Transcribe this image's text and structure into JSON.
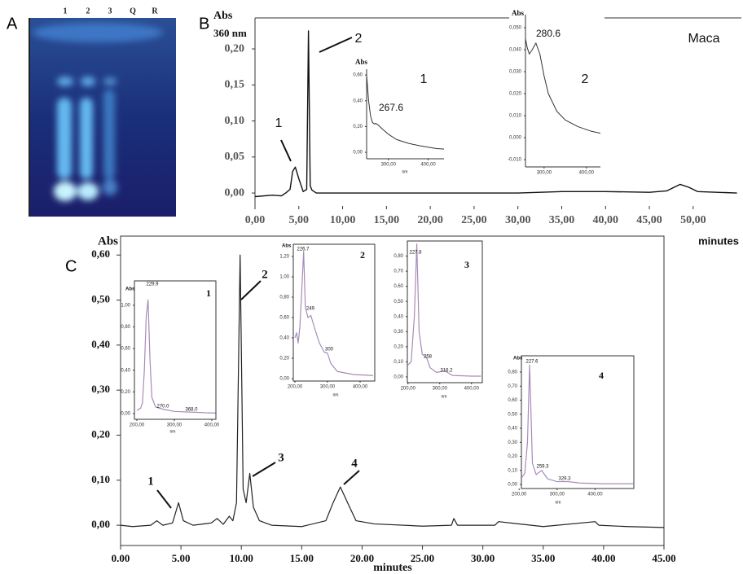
{
  "figure": {
    "panel_labels": [
      "A",
      "B",
      "C"
    ],
    "tlc_lanes": [
      "1",
      "2",
      "3",
      "Q",
      "R"
    ]
  },
  "chart_data": [
    {
      "type": "line",
      "y_label": "Abs",
      "subtitle": "360 nm",
      "x_label": "minutes",
      "color": "#111111",
      "x": [
        0,
        2,
        3,
        3.5,
        4,
        4.3,
        4.6,
        5,
        5.5,
        5.9,
        6.1,
        6.3,
        6.5,
        7,
        10,
        20,
        30,
        35,
        40,
        45,
        47,
        48.5,
        49.5,
        50.5,
        55
      ],
      "values": [
        -0.005,
        -0.003,
        -0.004,
        0,
        0.005,
        0.03,
        0.036,
        0.02,
        0.002,
        0.005,
        0.225,
        0.01,
        0.004,
        0,
        0,
        0,
        0,
        0.002,
        0.002,
        0.001,
        0.003,
        0.012,
        0.008,
        0.002,
        0
      ],
      "xlim": [
        0,
        55.5
      ],
      "ylim": [
        -0.018,
        0.243
      ],
      "xticks": [
        {
          "value": 0,
          "label": "0,00"
        },
        {
          "value": 5,
          "label": "5,00"
        },
        {
          "value": 10,
          "label": "10,00"
        },
        {
          "value": 15,
          "label": "15,00"
        },
        {
          "value": 20,
          "label": "20,00"
        },
        {
          "value": 25,
          "label": "25,00"
        },
        {
          "value": 30,
          "label": "30,00"
        },
        {
          "value": 35,
          "label": "35,00"
        },
        {
          "value": 40,
          "label": "40,00"
        },
        {
          "value": 45,
          "label": "45,00"
        },
        {
          "value": 50,
          "label": "50,00"
        }
      ],
      "yticks": [
        {
          "value": 0,
          "label": "0,00"
        },
        {
          "value": 0.05,
          "label": "0,05"
        },
        {
          "value": 0.1,
          "label": "0,10"
        },
        {
          "value": 0.15,
          "label": "0,15"
        },
        {
          "value": 0.2,
          "label": "0,20"
        }
      ],
      "annotations": [
        "1",
        "2",
        "Maca"
      ]
    },
    {
      "type": "line",
      "y_label": "Abs",
      "x_label": "nm",
      "color": "#333333",
      "x": [
        245,
        250,
        255,
        260,
        265,
        267.6,
        275,
        285,
        300,
        320,
        350,
        380,
        420,
        440
      ],
      "values": [
        0.6,
        0.4,
        0.28,
        0.23,
        0.22,
        0.225,
        0.21,
        0.18,
        0.14,
        0.1,
        0.07,
        0.05,
        0.03,
        0.025
      ],
      "xlim": [
        245,
        440
      ],
      "ylim": [
        -0.05,
        0.645
      ],
      "xticks": [
        {
          "value": 300,
          "label": "300,00"
        },
        {
          "value": 400,
          "label": "400,00"
        }
      ],
      "yticks": [
        {
          "value": 0,
          "label": "0,00"
        },
        {
          "value": 0.2,
          "label": "0,20"
        },
        {
          "value": 0.4,
          "label": "0,40"
        },
        {
          "value": 0.6,
          "label": "0,60"
        }
      ],
      "annotations": [
        "267.6",
        "1"
      ]
    },
    {
      "type": "line",
      "y_label": "Abs",
      "color": "#333333",
      "x": [
        256,
        260,
        265,
        272,
        280.6,
        290,
        300,
        310,
        330,
        350,
        380,
        410,
        433
      ],
      "values": [
        0.045,
        0.041,
        0.038,
        0.04,
        0.043,
        0.038,
        0.028,
        0.02,
        0.012,
        0.008,
        0.005,
        0.003,
        0.002
      ],
      "xlim": [
        256,
        433
      ],
      "ylim": [
        -0.0133,
        0.0559
      ],
      "xticks": [
        {
          "value": 300,
          "label": "300,00"
        },
        {
          "value": 400,
          "label": "400,00"
        }
      ],
      "yticks": [
        {
          "value": -0.01,
          "label": "-0,010"
        },
        {
          "value": 0,
          "label": "0,000"
        },
        {
          "value": 0.01,
          "label": "0,010"
        },
        {
          "value": 0.02,
          "label": "0,020"
        },
        {
          "value": 0.03,
          "label": "0,030"
        },
        {
          "value": 0.04,
          "label": "0,040"
        },
        {
          "value": 0.05,
          "label": "0,050"
        }
      ],
      "annotations": [
        "280.6",
        "2"
      ]
    },
    {
      "type": "line",
      "y_label": "Abs",
      "x_label": "minutes",
      "color": "#222222",
      "x": [
        0,
        1,
        2.5,
        3,
        3.5,
        4.3,
        4.8,
        5.2,
        6,
        7.5,
        8,
        8.5,
        9,
        9.3,
        9.6,
        9.9,
        10.15,
        10.4,
        10.7,
        11,
        11.5,
        12.5,
        15,
        17,
        17.6,
        18.2,
        18.8,
        19.5,
        21,
        25,
        27.4,
        27.6,
        27.9,
        31,
        31.3,
        35,
        39.3,
        39.6,
        42,
        45
      ],
      "values": [
        0,
        -0.003,
        0,
        0.01,
        0,
        0.005,
        0.05,
        0.01,
        0,
        0.005,
        0.015,
        0.002,
        0.02,
        0.01,
        0.05,
        0.6,
        0.08,
        0.05,
        0.115,
        0.04,
        0.01,
        0,
        -0.003,
        0.01,
        0.05,
        0.085,
        0.05,
        0.01,
        0.003,
        -0.002,
        0,
        0.015,
        0,
        0,
        0.008,
        -0.003,
        0.008,
        0,
        -0.003,
        -0.005
      ],
      "xlim": [
        0,
        45
      ],
      "ylim": [
        -0.045,
        0.642
      ],
      "xticks": [
        {
          "value": 0,
          "label": "0.00"
        },
        {
          "value": 5,
          "label": "5.00"
        },
        {
          "value": 10,
          "label": "10.00"
        },
        {
          "value": 15,
          "label": "15.00"
        },
        {
          "value": 20,
          "label": "20.00"
        },
        {
          "value": 25,
          "label": "25.00"
        },
        {
          "value": 30,
          "label": "30.00"
        },
        {
          "value": 35,
          "label": "35.00"
        },
        {
          "value": 40,
          "label": "40.00"
        },
        {
          "value": 45,
          "label": "45.00"
        }
      ],
      "yticks": [
        {
          "value": 0,
          "label": "0,00"
        },
        {
          "value": 0.1,
          "label": "0,10"
        },
        {
          "value": 0.2,
          "label": "0,20"
        },
        {
          "value": 0.3,
          "label": "0,30"
        },
        {
          "value": 0.4,
          "label": "0,40"
        },
        {
          "value": 0.5,
          "label": "0,50"
        },
        {
          "value": 0.6,
          "label": "0,60"
        }
      ],
      "annotations": [
        "1",
        "2",
        "3",
        "4"
      ]
    },
    {
      "type": "line",
      "y_label": "Abs",
      "x_label": "nm",
      "color": "#a78bb8",
      "x": [
        200,
        210,
        215,
        220,
        225,
        229.9,
        235,
        240,
        250,
        270,
        300,
        368,
        400,
        410
      ],
      "values": [
        0.03,
        0.05,
        0.1,
        0.4,
        0.9,
        1.05,
        0.5,
        0.15,
        0.06,
        0.04,
        0.02,
        0.01,
        0.005,
        0.005
      ],
      "xlim": [
        193.5,
        410.9
      ],
      "ylim": [
        -0.053,
        1.225
      ],
      "xticks": [
        {
          "value": 200,
          "label": "200,00"
        },
        {
          "value": 300,
          "label": "300,00"
        },
        {
          "value": 400,
          "label": "400,00"
        }
      ],
      "yticks": [
        {
          "value": 0,
          "label": "0,00"
        },
        {
          "value": 0.2,
          "label": "0,20"
        },
        {
          "value": 0.4,
          "label": "0,40"
        },
        {
          "value": 0.6,
          "label": "0,60"
        },
        {
          "value": 0.8,
          "label": "0,80"
        },
        {
          "value": 1,
          "label": "1,00"
        }
      ],
      "annotations": [
        "229.9",
        "270.0",
        "368.0",
        "1"
      ]
    },
    {
      "type": "line",
      "y_label": "Abs",
      "x_label": "nm",
      "color": "#a78bb8",
      "x": [
        200,
        205,
        210,
        215,
        220,
        226.7,
        232,
        240,
        249,
        260,
        275,
        290,
        300,
        310,
        330,
        380,
        440
      ],
      "values": [
        0.4,
        0.45,
        0.35,
        0.5,
        0.8,
        1.25,
        0.7,
        0.6,
        0.62,
        0.5,
        0.35,
        0.26,
        0.25,
        0.15,
        0.07,
        0.04,
        0.03
      ],
      "xlim": [
        195,
        445
      ],
      "ylim": [
        -0.024,
        1.32
      ],
      "xticks": [
        {
          "value": 200,
          "label": "200,00"
        },
        {
          "value": 300,
          "label": "300,00"
        },
        {
          "value": 400,
          "label": "400,00"
        }
      ],
      "yticks": [
        {
          "value": 0,
          "label": "0,00"
        },
        {
          "value": 0.2,
          "label": "0,20"
        },
        {
          "value": 0.4,
          "label": "0,40"
        },
        {
          "value": 0.6,
          "label": "0,60"
        },
        {
          "value": 0.8,
          "label": "0,80"
        },
        {
          "value": 1,
          "label": "1,00"
        },
        {
          "value": 1.2,
          "label": "1,20"
        }
      ],
      "annotations": [
        "226.7",
        "249",
        "300",
        "2"
      ]
    },
    {
      "type": "line",
      "x_label": "nm",
      "color": "#a78bb8",
      "x": [
        200,
        210,
        220,
        227.8,
        235,
        245,
        258,
        270,
        290,
        316.2,
        340,
        400,
        430
      ],
      "values": [
        0.08,
        0.1,
        0.4,
        0.88,
        0.3,
        0.15,
        0.13,
        0.06,
        0.03,
        0.04,
        0.01,
        0.005,
        0.005
      ],
      "xlim": [
        198,
        434
      ],
      "ylim": [
        -0.038,
        0.9
      ],
      "xticks": [
        {
          "value": 200,
          "label": "200,00"
        },
        {
          "value": 300,
          "label": "300,00"
        },
        {
          "value": 400,
          "label": "400,00"
        }
      ],
      "yticks": [
        {
          "value": 0,
          "label": "0,00"
        },
        {
          "value": 0.1,
          "label": "0,10"
        },
        {
          "value": 0.2,
          "label": "0,20"
        },
        {
          "value": 0.3,
          "label": "0,30"
        },
        {
          "value": 0.4,
          "label": "0,40"
        },
        {
          "value": 0.5,
          "label": "0,50"
        },
        {
          "value": 0.6,
          "label": "0,60"
        },
        {
          "value": 0.7,
          "label": "0,70"
        },
        {
          "value": 0.8,
          "label": "0,80"
        }
      ],
      "annotations": [
        "227.8",
        "258",
        "316.2",
        "3"
      ]
    },
    {
      "type": "line",
      "y_label": "Abs",
      "x_label": "nm",
      "color": "#a78bb8",
      "x": [
        207,
        215,
        222,
        227.6,
        235,
        245,
        259.3,
        275,
        300,
        329.3,
        360,
        420,
        500
      ],
      "values": [
        0.05,
        0.08,
        0.3,
        0.85,
        0.15,
        0.07,
        0.1,
        0.04,
        0.02,
        0.02,
        0.01,
        0.005,
        0.005
      ],
      "xlim": [
        206,
        502
      ],
      "ylim": [
        -0.029,
        0.916
      ],
      "xticks": [
        {
          "value": 200,
          "label": "200,00"
        },
        {
          "value": 300,
          "label": "300,00"
        },
        {
          "value": 400,
          "label": "400,00"
        }
      ],
      "yticks": [
        {
          "value": 0,
          "label": "0,00"
        },
        {
          "value": 0.1,
          "label": "0,10"
        },
        {
          "value": 0.2,
          "label": "0,20"
        },
        {
          "value": 0.3,
          "label": "0,30"
        },
        {
          "value": 0.4,
          "label": "0,40"
        },
        {
          "value": 0.5,
          "label": "0,50"
        },
        {
          "value": 0.6,
          "label": "0,60"
        },
        {
          "value": 0.7,
          "label": "0,70"
        },
        {
          "value": 0.8,
          "label": "0,80"
        }
      ],
      "annotations": [
        "227.6",
        "259.3",
        "329.3",
        "4"
      ]
    }
  ]
}
